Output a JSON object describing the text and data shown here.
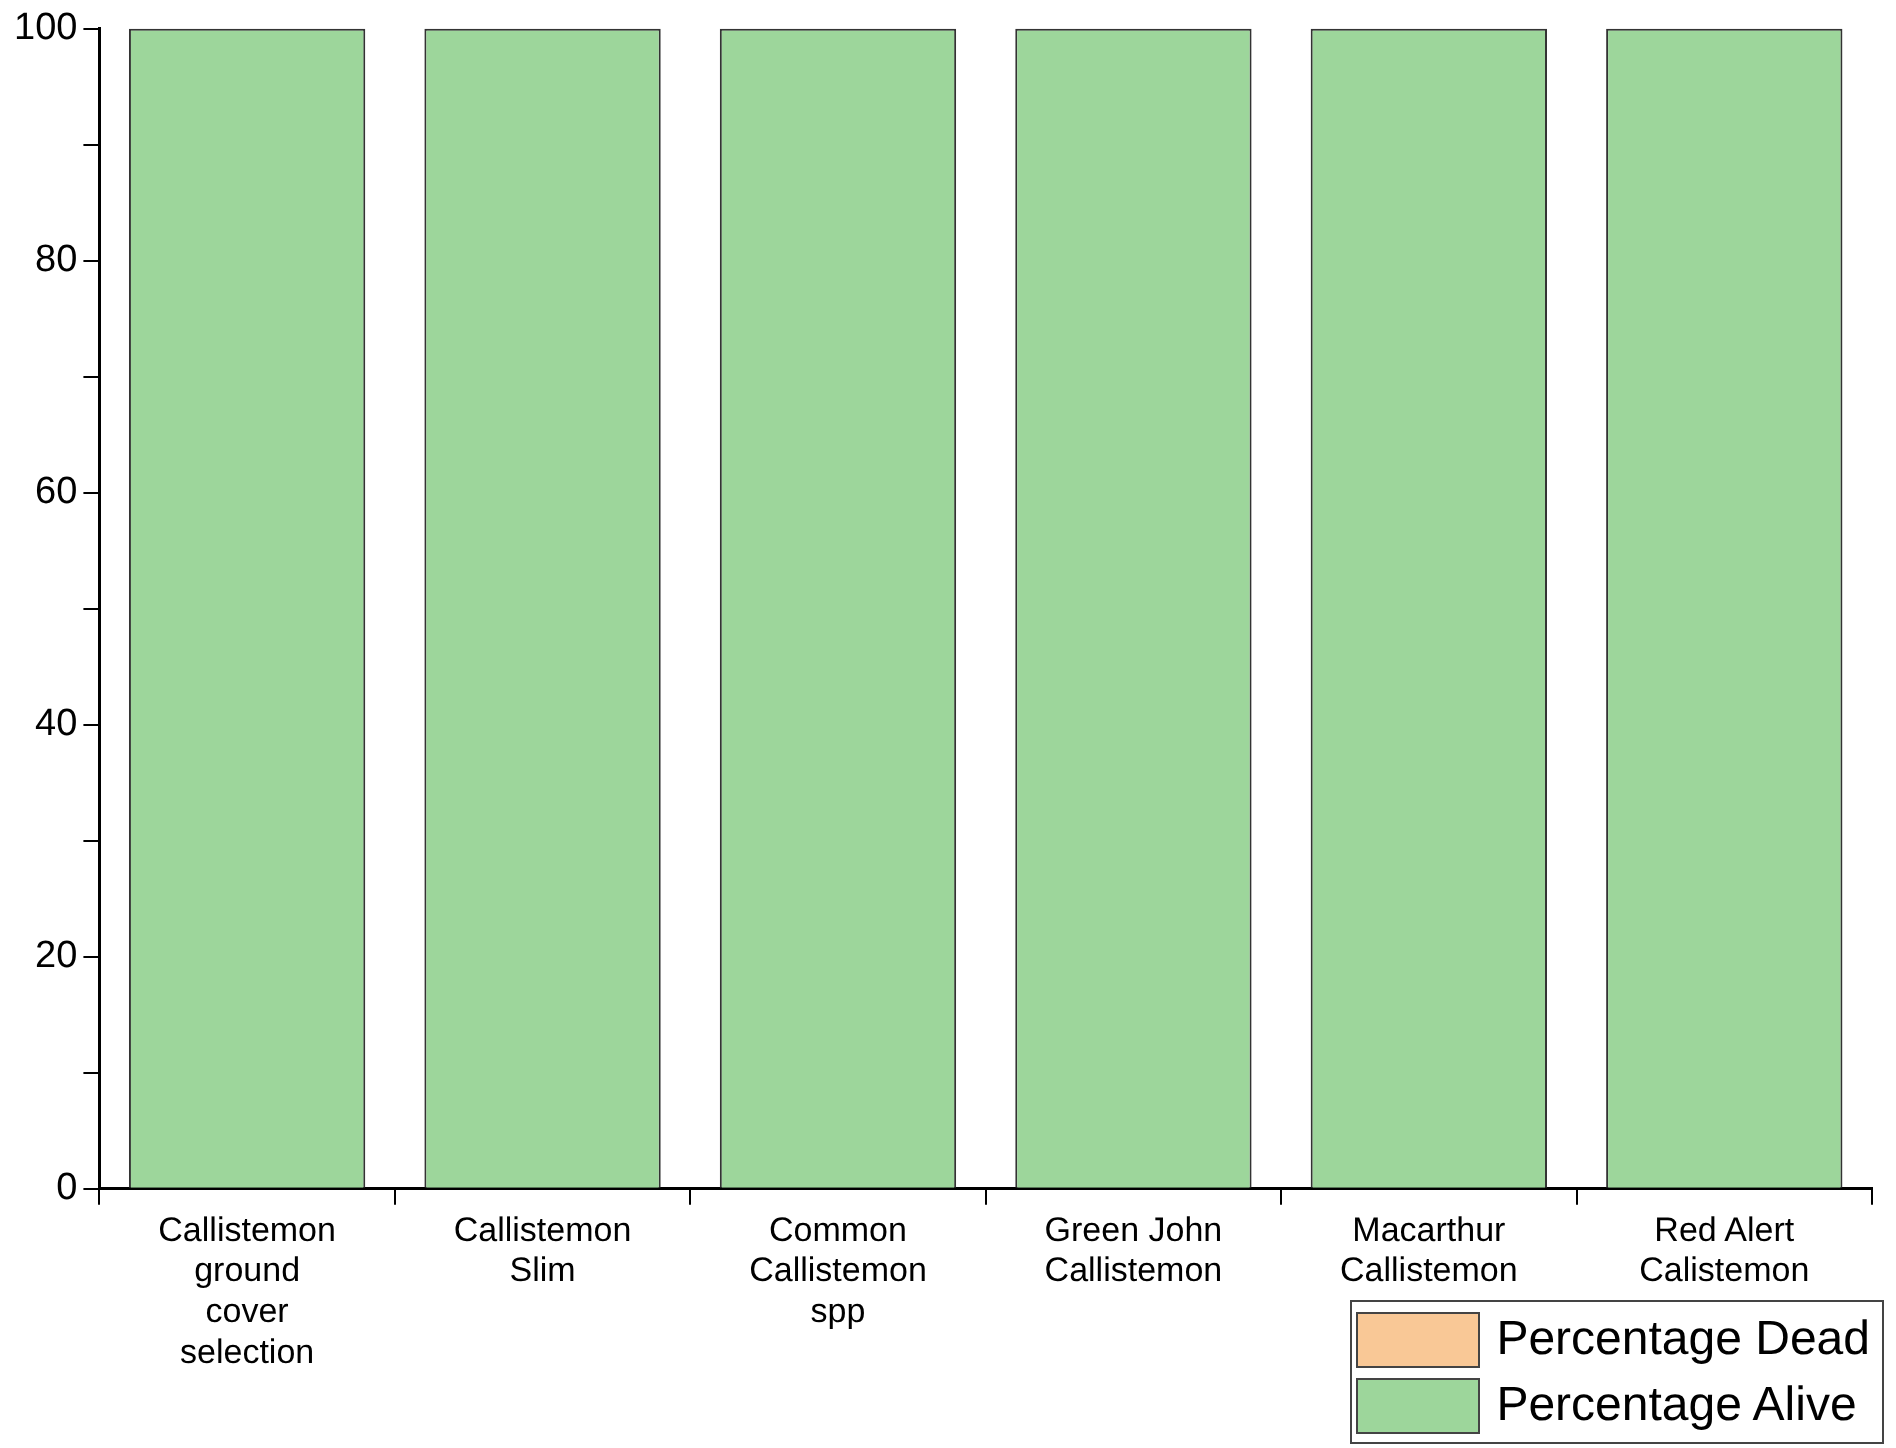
{
  "chart_data": {
    "type": "bar",
    "stacked": true,
    "categories": [
      "Callistemon\nground\ncover\nselection",
      "Callistemon\nSlim",
      "Common\nCallistemon\nspp",
      "Green John\nCallistemon",
      "Macarthur\nCallistemon",
      "Red Alert\nCalistemon"
    ],
    "series": [
      {
        "name": "Percentage Dead",
        "color": "#f9c896",
        "values": [
          0,
          0,
          0,
          0,
          0,
          0
        ]
      },
      {
        "name": "Percentage Alive",
        "color": "#9dd69b",
        "values": [
          100,
          100,
          100,
          100,
          100,
          100
        ]
      }
    ],
    "ylim": [
      0,
      100
    ],
    "yticks": [
      0,
      {
        "value": 10,
        "label": null
      },
      20,
      {
        "value": 30,
        "label": null
      },
      40,
      {
        "value": 50,
        "label": null
      },
      60,
      {
        "value": 70,
        "label": null
      },
      80,
      {
        "value": 90,
        "label": null
      },
      100
    ],
    "grid": false,
    "legend": "bottom right"
  }
}
